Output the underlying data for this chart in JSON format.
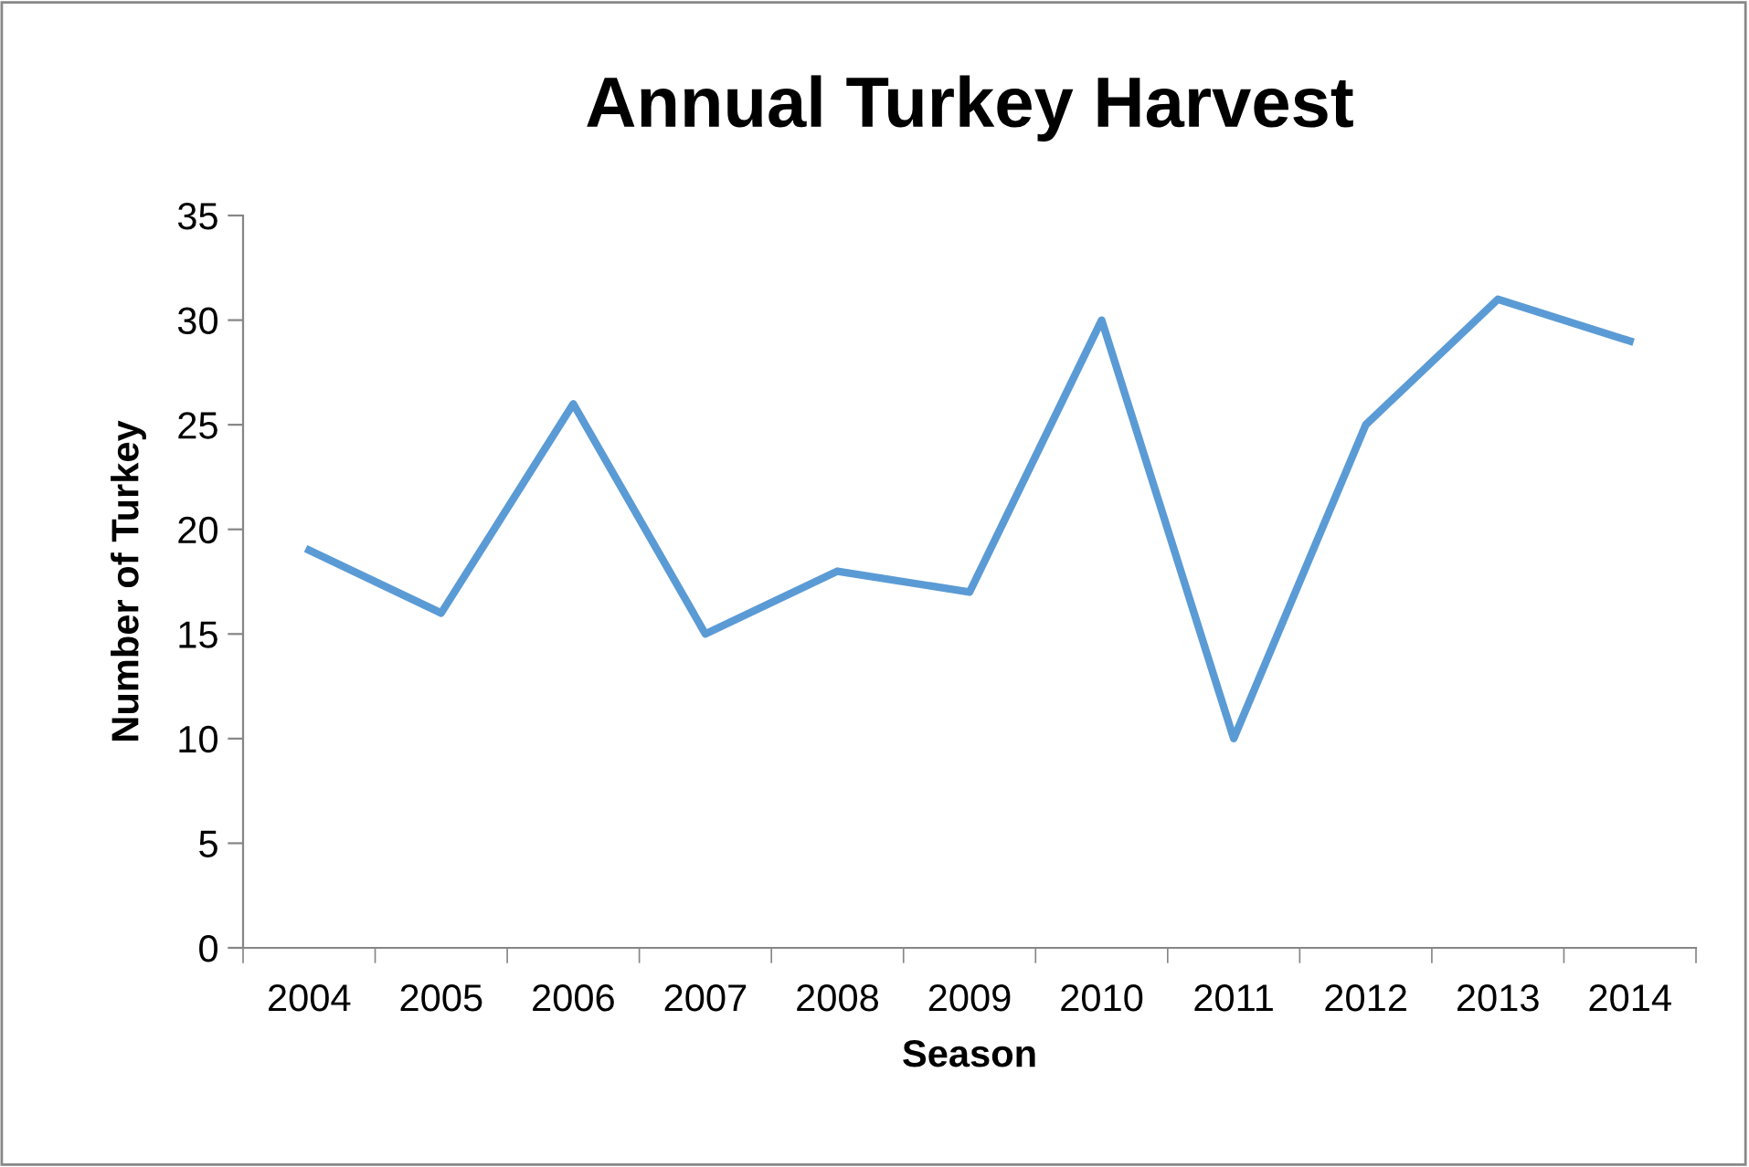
{
  "chart_data": {
    "type": "line",
    "title": "Annual Turkey Harvest",
    "xlabel": "Season",
    "ylabel": "Number of Turkey",
    "categories": [
      "2004",
      "2005",
      "2006",
      "2007",
      "2008",
      "2009",
      "2010",
      "2011",
      "2012",
      "2013",
      "2014"
    ],
    "series": [
      {
        "color": "#5b9bd5",
        "values": [
          19,
          16,
          26,
          15,
          18,
          17,
          30,
          10,
          25,
          31,
          29
        ]
      }
    ],
    "ylim": [
      0,
      35
    ],
    "yticks": [
      0,
      5,
      10,
      15,
      20,
      25,
      30,
      35
    ],
    "grid": false,
    "marker": "none",
    "line_style": "solid"
  }
}
